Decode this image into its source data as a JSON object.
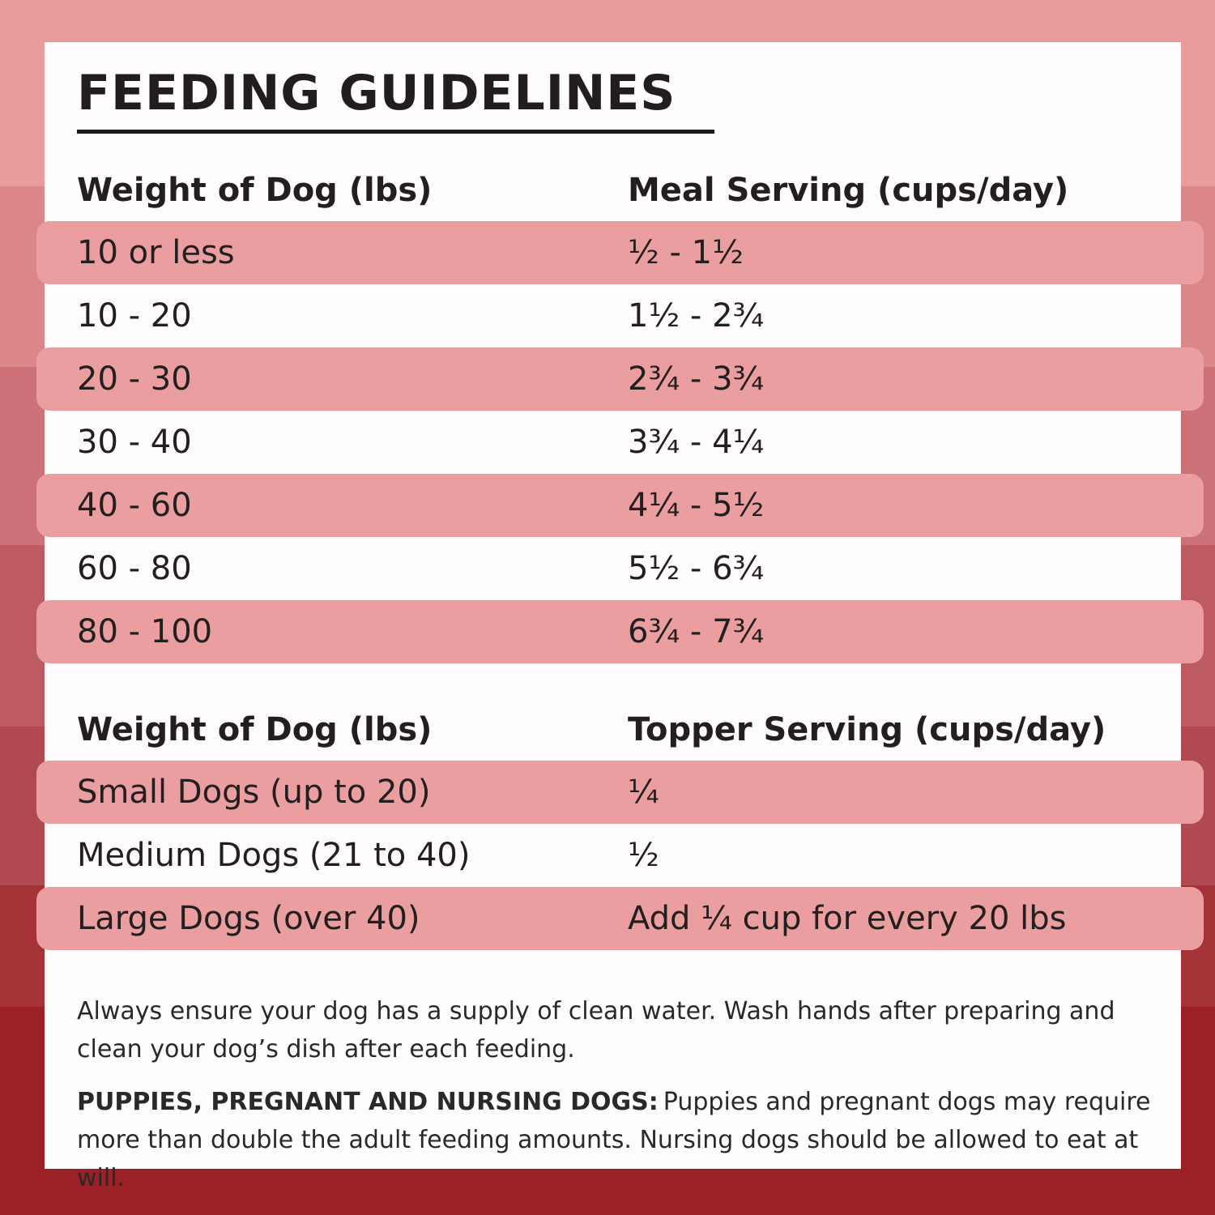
{
  "title": "FEEDING GUIDELINES",
  "meal_table": {
    "col1_header": "Weight of Dog (lbs)",
    "col2_header": "Meal Serving (cups/day)",
    "rows": [
      {
        "weight": "10 or less",
        "serving": "½ - 1½"
      },
      {
        "weight": "10 - 20",
        "serving": "1½ - 2¾"
      },
      {
        "weight": "20 - 30",
        "serving": "2¾ - 3¾"
      },
      {
        "weight": "30 - 40",
        "serving": "3¾ - 4¼"
      },
      {
        "weight": "40 - 60",
        "serving": "4¼ - 5½"
      },
      {
        "weight": "60 - 80",
        "serving": "5½ - 6¾"
      },
      {
        "weight": "80 - 100",
        "serving": "6¾ - 7¾"
      }
    ]
  },
  "topper_table": {
    "col1_header": "Weight of Dog (lbs)",
    "col2_header": "Topper Serving (cups/day)",
    "rows": [
      {
        "weight": "Small Dogs (up to 20)",
        "serving": "¼"
      },
      {
        "weight": "Medium Dogs (21 to 40)",
        "serving": "½"
      },
      {
        "weight": "Large Dogs (over 40)",
        "serving": "Add ¼ cup for every 20 lbs"
      }
    ]
  },
  "notes": {
    "water_note": "Always ensure your dog has a supply of clean water. Wash hands after preparing and clean your dog’s dish after each feeding.",
    "puppies_label": "PUPPIES, PREGNANT AND NURSING DOGS:",
    "puppies_note": "Puppies and pregnant dogs may require more than double the adult feeding amounts. Nursing dogs should be allowed to eat at will."
  },
  "colors": {
    "text": "#231f20",
    "card_background": "#fefcfc",
    "pink_row": "#eb9e9f",
    "background_bands": [
      "#ea9c9d",
      "#db8689",
      "#cc7177",
      "#bd5a62",
      "#b04a50",
      "#a43237",
      "#9c2126"
    ]
  }
}
